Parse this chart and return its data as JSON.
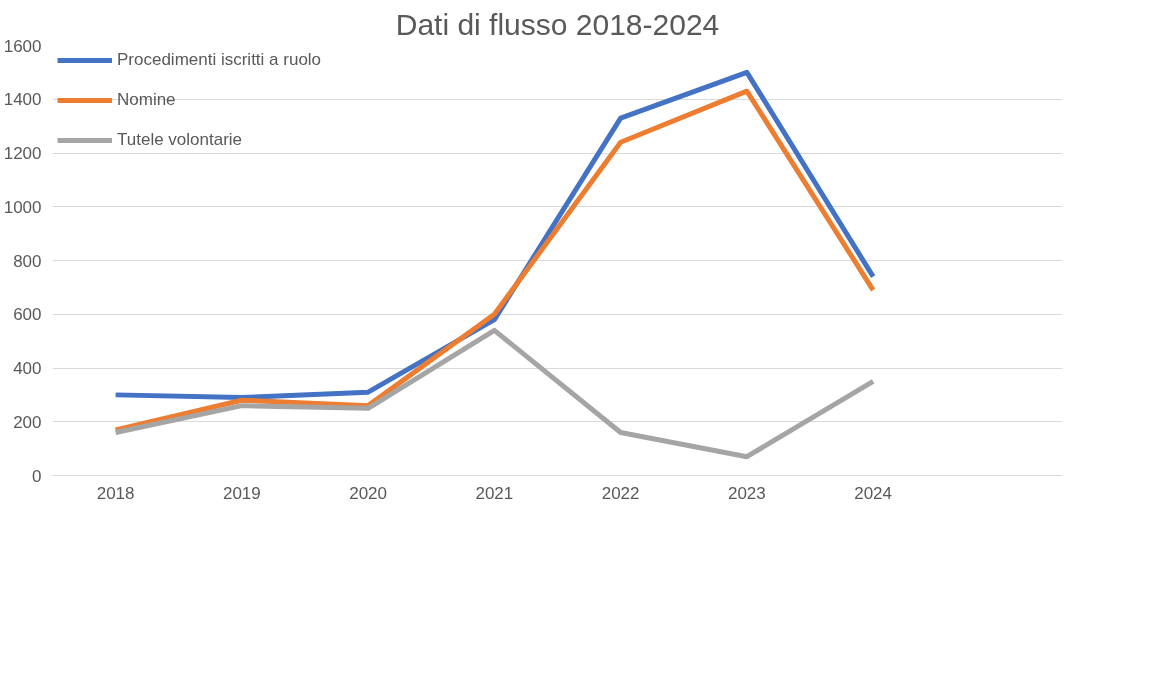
{
  "chart_data": {
    "type": "line",
    "title": "Dati di flusso 2018-2024",
    "categories": [
      "2018",
      "2019",
      "2020",
      "2021",
      "2022",
      "2023",
      "2024",
      null
    ],
    "series": [
      {
        "name": "Procedimenti iscritti a ruolo",
        "color": "#4472c4",
        "values": [
          300,
          290,
          310,
          580,
          1330,
          1500,
          740,
          null
        ]
      },
      {
        "name": "Nomine",
        "color": "#ed7d31",
        "values": [
          170,
          280,
          260,
          600,
          1240,
          1430,
          690,
          null
        ]
      },
      {
        "name": "Tutele volontarie",
        "color": "#a5a5a5",
        "values": [
          160,
          260,
          250,
          540,
          160,
          70,
          350,
          null
        ]
      }
    ],
    "ylim": [
      0,
      1600
    ],
    "yticks": [
      0,
      200,
      400,
      600,
      800,
      1000,
      1200,
      1400,
      1600
    ],
    "grid": "y",
    "legend": "top left",
    "marker": "none",
    "line_style": "solid"
  }
}
